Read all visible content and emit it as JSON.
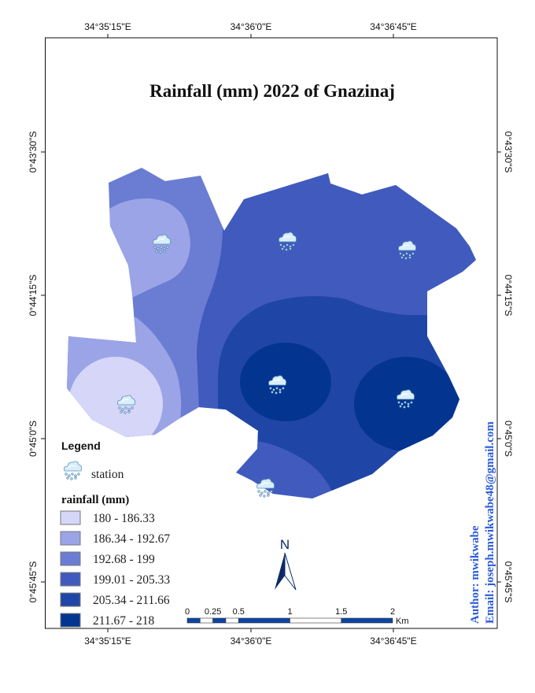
{
  "map": {
    "title": "Rainfall (mm) 2022 of Gnazinaj",
    "longitude_labels": [
      "34°35'15\"E",
      "34°36'0\"E",
      "34°36'45\"E"
    ],
    "latitude_labels": [
      "0°43'30\"S",
      "0°44'15\"S",
      "0°45'0\"S",
      "0°45'45\"S"
    ],
    "north_label": "N",
    "station_icon": "rain-cloud-icon",
    "station_count": 7
  },
  "legend": {
    "title": "Legend",
    "station_label": "station",
    "rainfall_title": "rainfall (mm)",
    "classes": [
      {
        "label": "180 - 186.33",
        "color": "#d6d6f8"
      },
      {
        "label": "186.34 - 192.67",
        "color": "#9ba4e6"
      },
      {
        "label": "192.68 - 199",
        "color": "#6b7dd2"
      },
      {
        "label": "199.01 - 205.33",
        "color": "#405bbd"
      },
      {
        "label": "205.34 - 211.66",
        "color": "#1f46a6"
      },
      {
        "label": "211.67 - 218",
        "color": "#033590"
      }
    ]
  },
  "scale_bar": {
    "labels": [
      "0",
      "0.25",
      "0.5",
      "1",
      "1.5",
      "2"
    ],
    "unit": "Km",
    "color": "#0b45a5"
  },
  "credits": {
    "author": "Author: mwikwabe",
    "email": "Email: joseph.mwikwabe48@gmail.com",
    "color": "#2a5bd7"
  }
}
